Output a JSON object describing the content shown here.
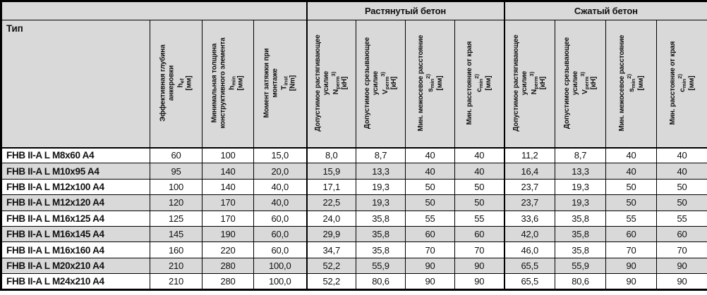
{
  "table": {
    "type_header": "Тип",
    "sections": [
      {
        "label": "Растянутый бетон"
      },
      {
        "label": "Сжатый бетон"
      }
    ],
    "colors": {
      "header_bg": "#d9d9d9",
      "alt_row_bg": "#d9d9d9",
      "border": "#000000"
    },
    "base_columns": [
      {
        "id": "effective-anchorage-depth",
        "title_lines": [
          "Эффективная глубина",
          "анкеровки"
        ],
        "symbol": {
          "base": "h",
          "sub": "ef",
          "sup": null
        },
        "unit": "[мм]"
      },
      {
        "id": "min-member-thickness",
        "title_lines": [
          "Минимальная толщина",
          "конструктивного элемента"
        ],
        "symbol": {
          "base": "h",
          "sub": "min",
          "sup": null
        },
        "unit": "[мм]"
      },
      {
        "id": "installation-torque",
        "title_lines": [
          "Момент затяжки при",
          "монтаже"
        ],
        "symbol": {
          "base": "T",
          "sub": "inst",
          "sup": null
        },
        "unit": "[Nm]"
      }
    ],
    "group_columns": [
      {
        "id": "permissible-tensile-load",
        "title_lines": [
          "Допустимое растягивающее",
          "усилие"
        ],
        "symbol": {
          "base": "N",
          "sub": "perm",
          "sup": "3)"
        },
        "unit": "[кН]"
      },
      {
        "id": "permissible-shear-load",
        "title_lines": [
          "Допустимое срезывающее",
          "усилие"
        ],
        "symbol": {
          "base": "V",
          "sub": "perm",
          "sup": "3)"
        },
        "unit": "[кН]"
      },
      {
        "id": "min-spacing",
        "title_lines": [
          "Мин. межосевое расстояние"
        ],
        "symbol": {
          "base": "s",
          "sub": "min",
          "sup": "2)"
        },
        "unit": "[мм]"
      },
      {
        "id": "min-edge-distance",
        "title_lines": [
          "Мин. расстояние от края"
        ],
        "symbol": {
          "base": "c",
          "sub": "min",
          "sup": "2)"
        },
        "unit": "[мм]"
      }
    ],
    "rows": [
      {
        "type": "FHB II-A L M8x60 A4",
        "values": [
          "60",
          "100",
          "15,0",
          "8,0",
          "8,7",
          "40",
          "40",
          "11,2",
          "8,7",
          "40",
          "40"
        ]
      },
      {
        "type": "FHB II-A L M10x95 A4",
        "values": [
          "95",
          "140",
          "20,0",
          "15,9",
          "13,3",
          "40",
          "40",
          "16,4",
          "13,3",
          "40",
          "40"
        ]
      },
      {
        "type": "FHB II-A L M12x100 A4",
        "values": [
          "100",
          "140",
          "40,0",
          "17,1",
          "19,3",
          "50",
          "50",
          "23,7",
          "19,3",
          "50",
          "50"
        ]
      },
      {
        "type": "FHB II-A L M12x120 A4",
        "values": [
          "120",
          "170",
          "40,0",
          "22,5",
          "19,3",
          "50",
          "50",
          "23,7",
          "19,3",
          "50",
          "50"
        ]
      },
      {
        "type": "FHB II-A L M16x125 A4",
        "values": [
          "125",
          "170",
          "60,0",
          "24,0",
          "35,8",
          "55",
          "55",
          "33,6",
          "35,8",
          "55",
          "55"
        ]
      },
      {
        "type": "FHB II-A L M16x145 A4",
        "values": [
          "145",
          "190",
          "60,0",
          "29,9",
          "35,8",
          "60",
          "60",
          "42,0",
          "35,8",
          "60",
          "60"
        ]
      },
      {
        "type": "FHB II-A L M16x160 A4",
        "values": [
          "160",
          "220",
          "60,0",
          "34,7",
          "35,8",
          "70",
          "70",
          "46,0",
          "35,8",
          "70",
          "70"
        ]
      },
      {
        "type": "FHB II-A L M20x210 A4",
        "values": [
          "210",
          "280",
          "100,0",
          "52,2",
          "55,9",
          "90",
          "90",
          "65,5",
          "55,9",
          "90",
          "90"
        ]
      },
      {
        "type": "FHB II-A L M24x210 A4",
        "values": [
          "210",
          "280",
          "100,0",
          "52,2",
          "80,6",
          "90",
          "90",
          "65,5",
          "80,6",
          "90",
          "90"
        ]
      }
    ]
  }
}
